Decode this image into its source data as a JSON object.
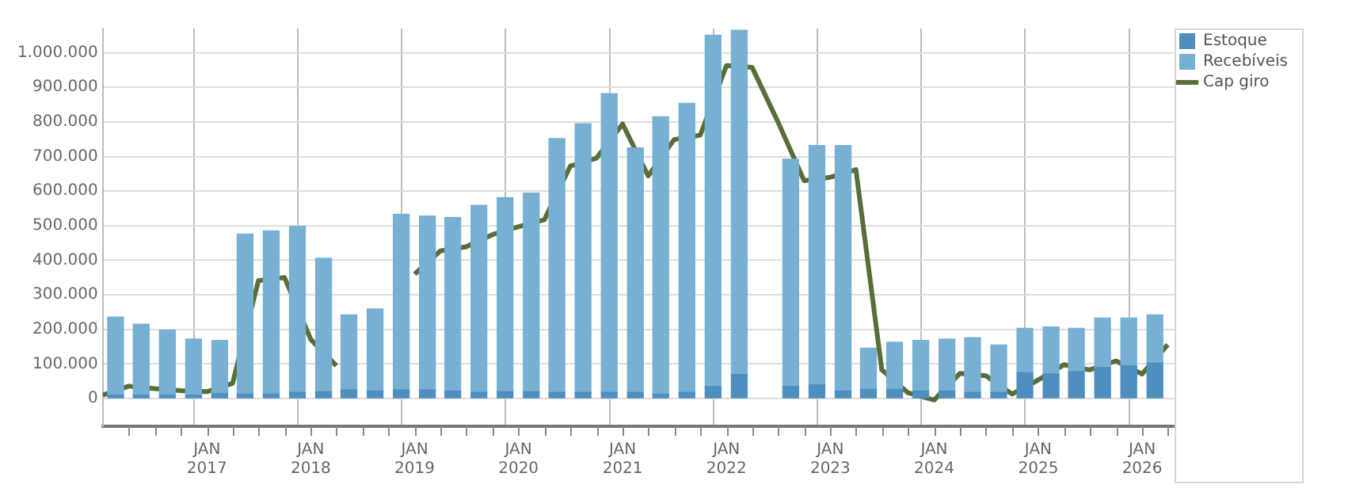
{
  "chart_data": {
    "type": "bar",
    "stacked": true,
    "series": [
      {
        "name": "Estoque",
        "color": "#4f8fbf",
        "x": [
          "2016-02-15",
          "2016-05-15",
          "2016-08-15",
          "2016-11-15",
          "2017-02-15",
          "2017-05-15",
          "2017-08-15",
          "2017-11-15",
          "2018-02-15",
          "2018-05-15",
          "2018-08-15",
          "2018-11-15",
          "2019-02-15",
          "2019-05-15",
          "2019-08-15",
          "2019-11-15",
          "2020-02-15",
          "2020-05-15",
          "2020-08-15",
          "2020-11-15",
          "2021-02-15",
          "2021-05-15",
          "2021-08-15",
          "2021-11-15",
          "2022-02-15",
          "2022-05-15",
          "2022-08-15",
          "2022-11-15",
          "2023-02-15",
          "2023-05-15",
          "2023-08-15",
          "2023-11-15",
          "2024-02-15",
          "2024-05-15",
          "2024-08-15",
          "2024-11-15",
          "2025-02-15",
          "2025-05-15",
          "2025-08-15",
          "2025-11-15",
          "2026-02-15"
        ],
        "values": [
          10000,
          10000,
          10000,
          10000,
          15000,
          13000,
          13000,
          18000,
          20000,
          25000,
          22000,
          25000,
          25000,
          22000,
          18000,
          20000,
          20000,
          18000,
          18000,
          18000,
          18000,
          13000,
          18000,
          35000,
          70000,
          null,
          35000,
          40000,
          22000,
          27000,
          27000,
          22000,
          22000,
          18000,
          18000,
          75000,
          72000,
          78000,
          90000,
          95000,
          103000
        ]
      },
      {
        "name": "Recebíveis",
        "color": "#78b0d3",
        "x": [
          "2016-02-15",
          "2016-05-15",
          "2016-08-15",
          "2016-11-15",
          "2017-02-15",
          "2017-05-15",
          "2017-08-15",
          "2017-11-15",
          "2018-02-15",
          "2018-05-15",
          "2018-08-15",
          "2018-11-15",
          "2019-02-15",
          "2019-05-15",
          "2019-08-15",
          "2019-11-15",
          "2020-02-15",
          "2020-05-15",
          "2020-08-15",
          "2020-11-15",
          "2021-02-15",
          "2021-05-15",
          "2021-08-15",
          "2021-11-15",
          "2022-02-15",
          "2022-05-15",
          "2022-08-15",
          "2022-11-15",
          "2023-02-15",
          "2023-05-15",
          "2023-08-15",
          "2023-11-15",
          "2024-02-15",
          "2024-05-15",
          "2024-08-15",
          "2024-11-15",
          "2025-02-15",
          "2025-05-15",
          "2025-08-15",
          "2025-11-15",
          "2026-02-15"
        ],
        "values": [
          226000,
          205000,
          188000,
          162000,
          153000,
          463000,
          472000,
          480000,
          386000,
          217000,
          237000,
          508000,
          503000,
          502000,
          541000,
          561000,
          574000,
          734000,
          777000,
          864000,
          707000,
          802000,
          836000,
          1016000,
          995000,
          null,
          657000,
          692000,
          710000,
          119000,
          136000,
          146000,
          150000,
          158000,
          137000,
          128000,
          135000,
          125000,
          143000,
          138000,
          139000
        ]
      },
      {
        "name": "Cap giro",
        "type": "line",
        "color": "#566f38",
        "x": [
          "2016-01",
          "2016-04",
          "2016-07",
          "2016-10",
          "2017-01",
          "2017-04",
          "2017-07",
          "2017-10",
          "2018-01",
          "2018-04",
          "2018-07",
          "2018-10",
          "2019-01",
          "2019-04",
          "2019-07",
          "2019-10",
          "2020-01",
          "2020-04",
          "2020-07",
          "2020-10",
          "2021-01",
          "2021-04",
          "2021-07",
          "2021-10",
          "2022-01",
          "2022-04",
          "2022-07",
          "2022-10",
          "2023-01",
          "2023-04",
          "2023-07",
          "2023-10",
          "2024-01",
          "2024-04",
          "2024-07",
          "2024-10",
          "2025-01",
          "2025-04",
          "2025-07",
          "2025-10",
          "2026-01",
          "2026-04"
        ],
        "values": [
          10000,
          36000,
          29000,
          23000,
          20000,
          44000,
          341000,
          350000,
          171000,
          95000,
          null,
          null,
          360000,
          427000,
          439000,
          474000,
          497000,
          517000,
          672000,
          695000,
          794000,
          644000,
          749000,
          762000,
          963000,
          958000,
          800000,
          630000,
          640000,
          662000,
          83000,
          17000,
          -4000,
          73000,
          66000,
          13000,
          54000,
          98000,
          83000,
          109000,
          71000,
          156000
        ]
      }
    ],
    "xlim": [
      "2016-01",
      "2026-04-25"
    ],
    "xticks": [
      {
        "value": "2016-04",
        "label": null
      },
      {
        "value": "2016-07",
        "label": null
      },
      {
        "value": "2016-10",
        "label": null
      },
      {
        "value": "2017-01",
        "label": "JAN 2017"
      },
      {
        "value": "2017-04",
        "label": null
      },
      {
        "value": "2017-07",
        "label": null
      },
      {
        "value": "2017-10",
        "label": null
      },
      {
        "value": "2018-01",
        "label": "JAN 2018"
      },
      {
        "value": "2018-04",
        "label": null
      },
      {
        "value": "2018-07",
        "label": null
      },
      {
        "value": "2018-10",
        "label": null
      },
      {
        "value": "2019-01",
        "label": "JAN 2019"
      },
      {
        "value": "2019-04",
        "label": null
      },
      {
        "value": "2019-07",
        "label": null
      },
      {
        "value": "2019-10",
        "label": null
      },
      {
        "value": "2020-01",
        "label": "JAN 2020"
      },
      {
        "value": "2020-04",
        "label": null
      },
      {
        "value": "2020-07",
        "label": null
      },
      {
        "value": "2020-10",
        "label": null
      },
      {
        "value": "2021-01",
        "label": "JAN 2021"
      },
      {
        "value": "2021-04",
        "label": null
      },
      {
        "value": "2021-07",
        "label": null
      },
      {
        "value": "2021-10",
        "label": null
      },
      {
        "value": "2022-01",
        "label": "JAN 2022"
      },
      {
        "value": "2022-04",
        "label": null
      },
      {
        "value": "2022-07",
        "label": null
      },
      {
        "value": "2022-10",
        "label": null
      },
      {
        "value": "2023-01",
        "label": "JAN 2023"
      },
      {
        "value": "2023-04",
        "label": null
      },
      {
        "value": "2023-07",
        "label": null
      },
      {
        "value": "2023-10",
        "label": null
      },
      {
        "value": "2024-01",
        "label": "JAN 2024"
      },
      {
        "value": "2024-04",
        "label": null
      },
      {
        "value": "2024-07",
        "label": null
      },
      {
        "value": "2024-10",
        "label": null
      },
      {
        "value": "2025-01",
        "label": "JAN 2025"
      },
      {
        "value": "2025-04",
        "label": null
      },
      {
        "value": "2025-07",
        "label": null
      },
      {
        "value": "2025-10",
        "label": null
      },
      {
        "value": "2026-01",
        "label": "JAN 2026"
      },
      {
        "value": "2026-04",
        "label": null
      }
    ],
    "ylim": [
      -80000,
      1070000
    ],
    "yticks": [
      0,
      {
        "value": 100000,
        "label": "100.000"
      },
      {
        "value": 200000,
        "label": "200.000"
      },
      {
        "value": 300000,
        "label": "300.000"
      },
      {
        "value": 400000,
        "label": "400.000"
      },
      {
        "value": 500000,
        "label": "500.000"
      },
      {
        "value": 600000,
        "label": "600.000"
      },
      {
        "value": 700000,
        "label": "700.000"
      },
      {
        "value": 800000,
        "label": "800.000"
      },
      {
        "value": 900000,
        "label": "900.000"
      },
      {
        "value": 1000000,
        "label": "1.000.000"
      }
    ],
    "grid": true,
    "legend": "top right"
  }
}
